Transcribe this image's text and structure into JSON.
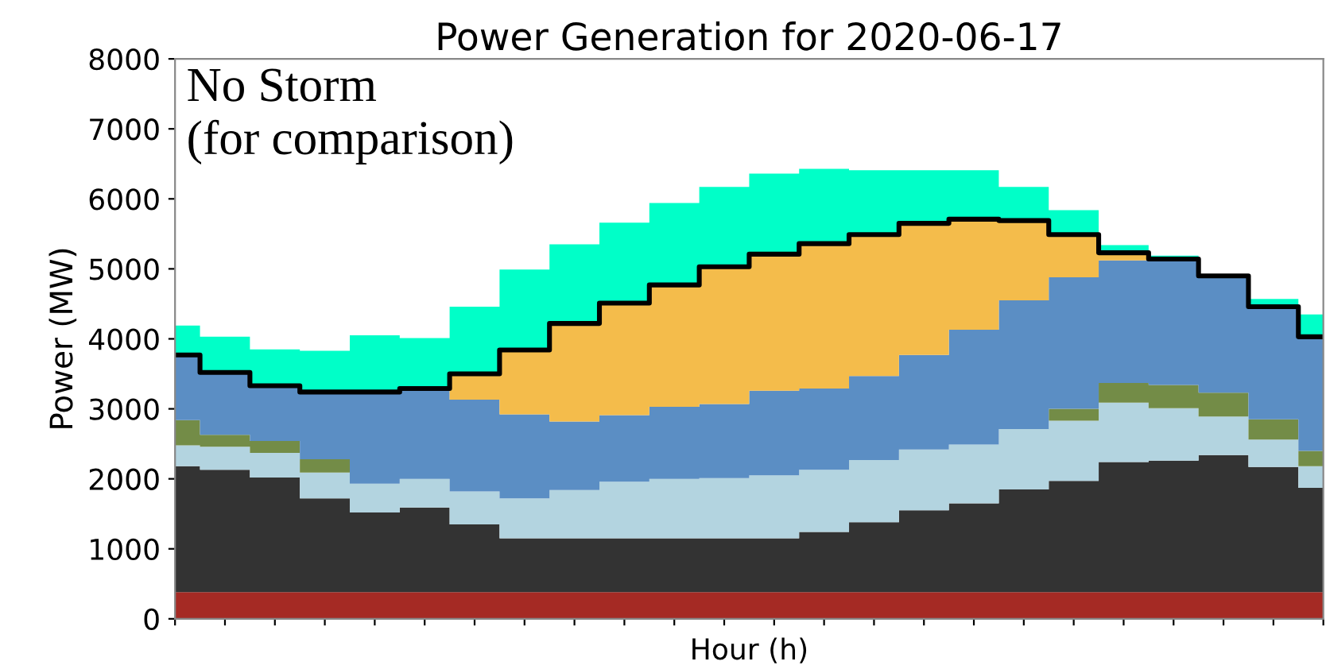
{
  "chart_data": {
    "type": "area",
    "stacked": true,
    "title": "Power Generation for 2020-06-17",
    "xlabel": "Hour (h)",
    "ylabel": "Power (MW)",
    "annotations": [
      "No Storm\n(for comparison)"
    ],
    "categories": [
      null,
      null,
      null,
      null,
      null,
      null,
      null,
      null,
      null,
      null,
      null,
      null,
      null,
      null,
      null,
      null,
      null,
      null,
      null,
      null,
      null,
      null,
      null,
      null
    ],
    "ylim": [
      0,
      8000
    ],
    "yticks": [
      0,
      1000,
      2000,
      3000,
      4000,
      5000,
      6000,
      7000,
      8000
    ],
    "tick_labels": "y",
    "grid": false,
    "legend": false,
    "series": [
      {
        "color": "#a52a24",
        "values": [
          380,
          380,
          380,
          380,
          380,
          380,
          380,
          380,
          380,
          380,
          380,
          380,
          380,
          380,
          380,
          380,
          380,
          380,
          380,
          380,
          380,
          380,
          380,
          380
        ]
      },
      {
        "color": "#333333",
        "values": [
          1800,
          1750,
          1640,
          1340,
          1140,
          1210,
          970,
          770,
          770,
          770,
          770,
          770,
          770,
          860,
          1000,
          1170,
          1270,
          1470,
          1590,
          1860,
          1880,
          1960,
          1790,
          1490
        ]
      },
      {
        "color": "#b3d4e0",
        "values": [
          300,
          330,
          350,
          370,
          410,
          410,
          470,
          570,
          690,
          810,
          850,
          860,
          900,
          890,
          890,
          870,
          840,
          860,
          860,
          850,
          750,
          550,
          390,
          310
        ]
      },
      {
        "color": "#738c47",
        "values": [
          360,
          170,
          170,
          190,
          0,
          0,
          0,
          0,
          0,
          0,
          0,
          0,
          0,
          0,
          0,
          0,
          0,
          0,
          170,
          280,
          330,
          340,
          290,
          220
        ]
      },
      {
        "color": "#5b8ec4",
        "values": [
          920,
          890,
          790,
          960,
          1320,
          1290,
          1310,
          1200,
          980,
          950,
          1030,
          1060,
          1210,
          1160,
          1200,
          1350,
          1640,
          1840,
          1880,
          1750,
          1800,
          1680,
          1610,
          1630
        ]
      },
      {
        "color": "#f4bc4b",
        "values": [
          0,
          0,
          0,
          0,
          0,
          0,
          370,
          920,
          1390,
          1600,
          1740,
          1950,
          1950,
          2070,
          2020,
          1880,
          1590,
          1150,
          610,
          110,
          0,
          0,
          0,
          0
        ]
      },
      {
        "color": "#00ffc8",
        "values": [
          430,
          510,
          520,
          590,
          800,
          720,
          960,
          1150,
          1140,
          1150,
          1170,
          1150,
          1150,
          1070,
          920,
          760,
          690,
          470,
          350,
          110,
          50,
          0,
          110,
          320
        ]
      },
      {
        "type": "step",
        "color": "#000000",
        "line_style": "solid",
        "values": [
          3770,
          3520,
          3330,
          3240,
          3240,
          3290,
          3500,
          3840,
          4220,
          4510,
          4770,
          5030,
          5210,
          5360,
          5490,
          5650,
          5710,
          5690,
          5490,
          5230,
          5140,
          4900,
          4460,
          4030
        ]
      }
    ]
  }
}
